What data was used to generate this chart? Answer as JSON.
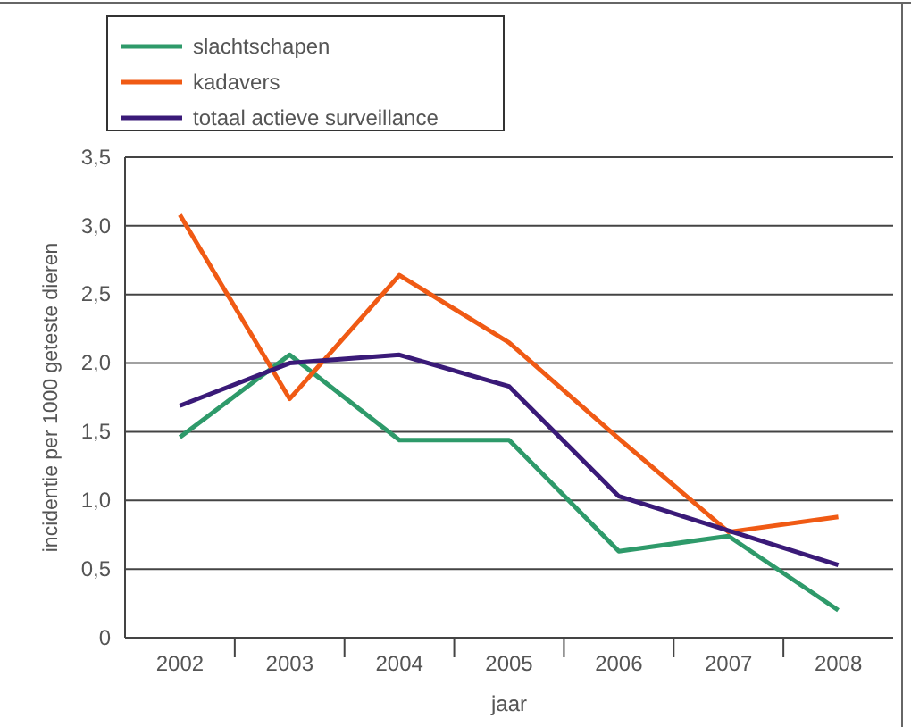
{
  "chart_data": {
    "type": "line",
    "xlabel": "jaar",
    "ylabel": "incidentie per 1000 geteste dieren",
    "categories": [
      "2002",
      "2003",
      "2004",
      "2005",
      "2006",
      "2007",
      "2008"
    ],
    "series": [
      {
        "name": "slachtschapen",
        "color": "#2e9a6a",
        "values": [
          1.46,
          2.06,
          1.44,
          1.44,
          0.63,
          0.74,
          0.2
        ]
      },
      {
        "name": "kadavers",
        "color": "#f05a14",
        "values": [
          3.08,
          1.74,
          2.64,
          2.15,
          1.45,
          0.77,
          0.88
        ]
      },
      {
        "name": "totaal actieve surveillance",
        "color": "#3a1a78",
        "values": [
          1.69,
          2.0,
          2.06,
          1.83,
          1.03,
          0.78,
          0.53
        ]
      }
    ],
    "ylim": [
      0,
      3.5
    ],
    "yticks": [
      {
        "value": 0,
        "label": "0"
      },
      {
        "value": 0.5,
        "label": "0,5"
      },
      {
        "value": 1,
        "label": "1,0"
      },
      {
        "value": 1.5,
        "label": "1,5"
      },
      {
        "value": 2,
        "label": "2,0"
      },
      {
        "value": 2.5,
        "label": "2,5"
      },
      {
        "value": 3,
        "label": "3,0"
      },
      {
        "value": 3.5,
        "label": "3,5"
      }
    ],
    "grid": "y",
    "legend": "top left",
    "marker": "none",
    "line_style": "solid"
  }
}
